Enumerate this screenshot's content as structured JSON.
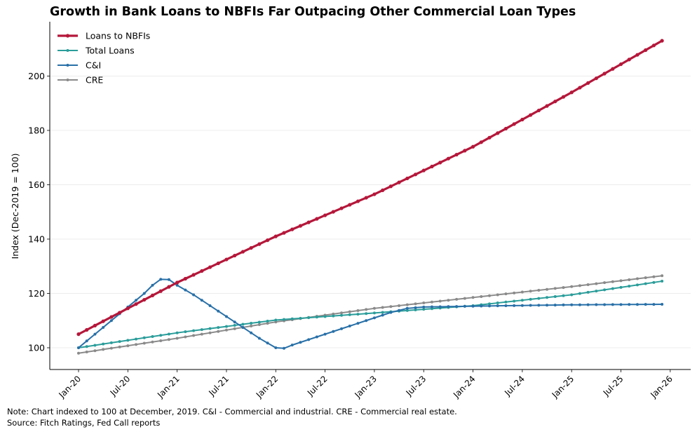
{
  "chart_data": {
    "type": "line",
    "title": "Growth in Bank Loans to NBFIs Far Outpacing Other Commercial Loan Types",
    "xlabel": "",
    "ylabel": "Index (Dec-2019 = 100)",
    "ylim": [
      92,
      220
    ],
    "yticks": [
      100,
      120,
      140,
      160,
      180,
      200
    ],
    "grid": "horizontal",
    "legend_position": "top-left",
    "x_start": "Jan-20",
    "num_points": 72,
    "xtick_labels": [
      "Jan-20",
      "Jul-20",
      "Jan-21",
      "Jul-21",
      "Jan-22",
      "Jul-22",
      "Jan-23",
      "Jul-23",
      "Jan-24",
      "Jul-24",
      "Jan-25",
      "Jul-25",
      "Jan-26"
    ],
    "series": [
      {
        "name": "Loans to NBFIs",
        "color": "#b5173a",
        "anchors": [
          [
            0,
            105
          ],
          [
            12,
            124
          ],
          [
            24,
            141
          ],
          [
            36,
            156.5
          ],
          [
            48,
            174
          ],
          [
            60,
            194
          ],
          [
            71,
            213
          ]
        ]
      },
      {
        "name": "Total Loans",
        "color": "#2a9d9a",
        "anchors": [
          [
            0,
            100
          ],
          [
            12,
            105.5
          ],
          [
            24,
            110.2
          ],
          [
            36,
            112.8
          ],
          [
            48,
            115.5
          ],
          [
            60,
            119.5
          ],
          [
            71,
            124.5
          ]
        ]
      },
      {
        "name": "C&I",
        "color": "#2870a8",
        "anchors": [
          [
            0,
            100
          ],
          [
            2,
            105
          ],
          [
            4,
            110
          ],
          [
            6,
            115
          ],
          [
            8,
            120
          ],
          [
            9,
            123
          ],
          [
            10,
            125.2
          ],
          [
            11,
            125.1
          ],
          [
            12,
            123
          ],
          [
            14,
            119.5
          ],
          [
            16,
            115.5
          ],
          [
            18,
            111.5
          ],
          [
            20,
            107.5
          ],
          [
            22,
            103.5
          ],
          [
            24,
            100
          ],
          [
            25,
            99.8
          ],
          [
            26,
            101
          ],
          [
            28,
            103
          ],
          [
            30,
            105
          ],
          [
            32,
            107
          ],
          [
            34,
            109
          ],
          [
            36,
            111
          ],
          [
            38,
            113
          ],
          [
            40,
            114.5
          ],
          [
            42,
            115
          ],
          [
            50,
            115.4
          ],
          [
            60,
            115.8
          ],
          [
            71,
            116
          ]
        ]
      },
      {
        "name": "CRE",
        "color": "#8a8a8a",
        "anchors": [
          [
            0,
            98
          ],
          [
            12,
            103.5
          ],
          [
            24,
            109.5
          ],
          [
            36,
            114.5
          ],
          [
            48,
            118.5
          ],
          [
            60,
            122.5
          ],
          [
            71,
            126.5
          ]
        ]
      }
    ]
  },
  "notes": {
    "note": "Note: Chart indexed to 100 at December, 2019. C&I - Commercial and industrial. CRE - Commercial real estate.",
    "source": "Source: Fitch Ratings, Fed Call reports"
  }
}
